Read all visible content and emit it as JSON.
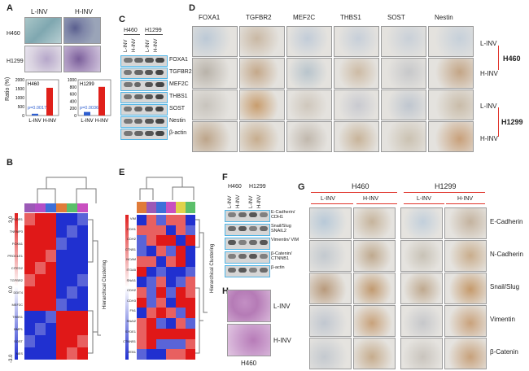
{
  "panels": {
    "a": "A",
    "b": "B",
    "c": "C",
    "d": "D",
    "e": "E",
    "f": "F",
    "g": "G",
    "h": "H"
  },
  "panel_a": {
    "col_labels": [
      "L-INV",
      "H-INV"
    ],
    "row_labels": [
      "H460",
      "H1299"
    ],
    "ylabel": "Ratio (%)"
  },
  "chart_data": [
    {
      "type": "bar",
      "title": "H460",
      "categories": [
        "L-INV",
        "H-INV"
      ],
      "values": [
        100,
        1550
      ],
      "ylim": [
        0,
        2000
      ],
      "yticks": [
        "0",
        "500",
        "1000",
        "1500",
        "2000"
      ],
      "annotation": "p=0.0017",
      "bar_colors": [
        "#2f5fd0",
        "#e0201a"
      ]
    },
    {
      "type": "bar",
      "title": "H1299",
      "categories": [
        "L-INV",
        "H-INV"
      ],
      "values": [
        100,
        800
      ],
      "ylim": [
        0,
        1000
      ],
      "yticks": [
        "0",
        "200",
        "400",
        "600",
        "800",
        "1000"
      ],
      "annotation": "p=0.0036",
      "bar_colors": [
        "#2f5fd0",
        "#e0201a"
      ]
    }
  ],
  "panel_c": {
    "cell_lines": [
      "H460",
      "H1299"
    ],
    "lanes": [
      "L-INV",
      "H-INV",
      "L-INV",
      "H-INV"
    ],
    "proteins": [
      "FOXA1",
      "TGFBR2",
      "MEF2C",
      "THBS1",
      "SOST",
      "Nestin",
      "β-actin"
    ]
  },
  "panel_d": {
    "columns": [
      "FOXA1",
      "TGFBR2",
      "MEF2C",
      "THBS1",
      "SOST",
      "Nestin"
    ],
    "row_labels": [
      "L-INV",
      "H-INV",
      "L-INV",
      "H-INV"
    ],
    "groups": [
      "H460",
      "H1299"
    ]
  },
  "panel_b": {
    "genes": [
      "PLOR1",
      "TNFAIP3",
      "FOXA1",
      "PROCLE1",
      "CITED2",
      "TGFBR2",
      "DDIT4",
      "MEF2C",
      "THBS1",
      "BMP1",
      "SOST",
      "NES"
    ],
    "side_label": "Hierarchical Clustering",
    "scale": [
      "-3.0",
      "0.0",
      "3.0"
    ]
  },
  "panel_e": {
    "genes": [
      "VIM",
      "CDH1",
      "CDH2",
      "CTNB1",
      "NCAM",
      "ITGA5",
      "SNAI1",
      "CDH2",
      "CDH3",
      "FN1",
      "SNAI2",
      "SYDE1",
      "CTNNB1",
      "ZEB1"
    ],
    "side_label": "Hierarchical Clustering"
  },
  "panel_f": {
    "cell_lines": [
      "H460",
      "H1299"
    ],
    "lanes": [
      "L-INV",
      "H-INV",
      "L-INV",
      "H-INV"
    ],
    "proteins": [
      "E-Cadherin/ CDH1",
      "Snail/Slug SNAIL2",
      "Vimentin/ VIM",
      "β-Catenin/ CTNNB1",
      "β-actin"
    ]
  },
  "panel_g": {
    "groups": [
      "H460",
      "H1299"
    ],
    "cols": [
      "L-INV",
      "H-INV",
      "L-INV",
      "H-INV"
    ],
    "rows": [
      "E-Cadherin",
      "N-Cadherin",
      "Snail/Slug",
      "Vimentin",
      "β-Catenin"
    ]
  },
  "panel_h": {
    "rows": [
      "L-INV",
      "H-INV"
    ],
    "caption": "H460"
  }
}
